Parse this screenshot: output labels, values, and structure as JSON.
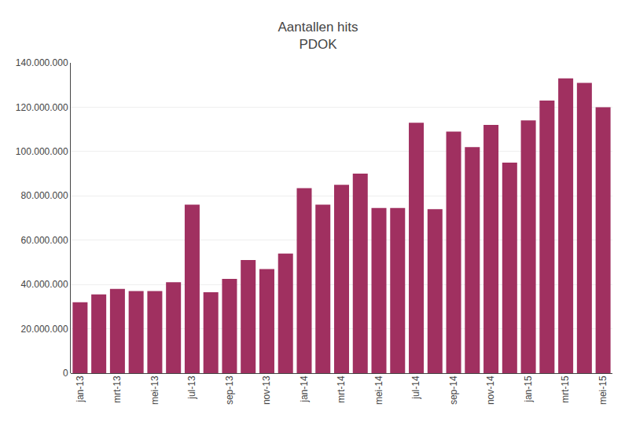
{
  "chart_data": {
    "type": "bar",
    "title": "Aantallen hits",
    "subtitle": "PDOK",
    "categories": [
      "jan-13",
      null,
      "mrt-13",
      null,
      "mei-13",
      null,
      "jul-13",
      null,
      "sep-13",
      null,
      "nov-13",
      null,
      "jan-14",
      null,
      "mrt-14",
      null,
      "mei-14",
      null,
      "jul-14",
      null,
      "sep-14",
      null,
      "nov-14",
      null,
      "jan-15",
      null,
      "mrt-15",
      null,
      "mei-15"
    ],
    "values": [
      32000000,
      35500000,
      38000000,
      37000000,
      37000000,
      41000000,
      76000000,
      36500000,
      42500000,
      51000000,
      47000000,
      54000000,
      83500000,
      76000000,
      85000000,
      90000000,
      74500000,
      74500000,
      113000000,
      74000000,
      109000000,
      102000000,
      112000000,
      95000000,
      114000000,
      123000000,
      133000000,
      131000000,
      120000000
    ],
    "color": "#a03060",
    "ylim": [
      0,
      140000000
    ],
    "yticks": [
      0,
      {
        "value": 20000000,
        "label": "20.000.000"
      },
      {
        "value": 40000000,
        "label": "40.000.000"
      },
      {
        "value": 60000000,
        "label": "60.000.000"
      },
      {
        "value": 80000000,
        "label": "80.000.000"
      },
      {
        "value": 100000000,
        "label": "100.000.000"
      },
      {
        "value": 120000000,
        "label": "120.000.000"
      },
      {
        "value": 140000000,
        "label": "140.000.000"
      }
    ],
    "grid": true
  }
}
